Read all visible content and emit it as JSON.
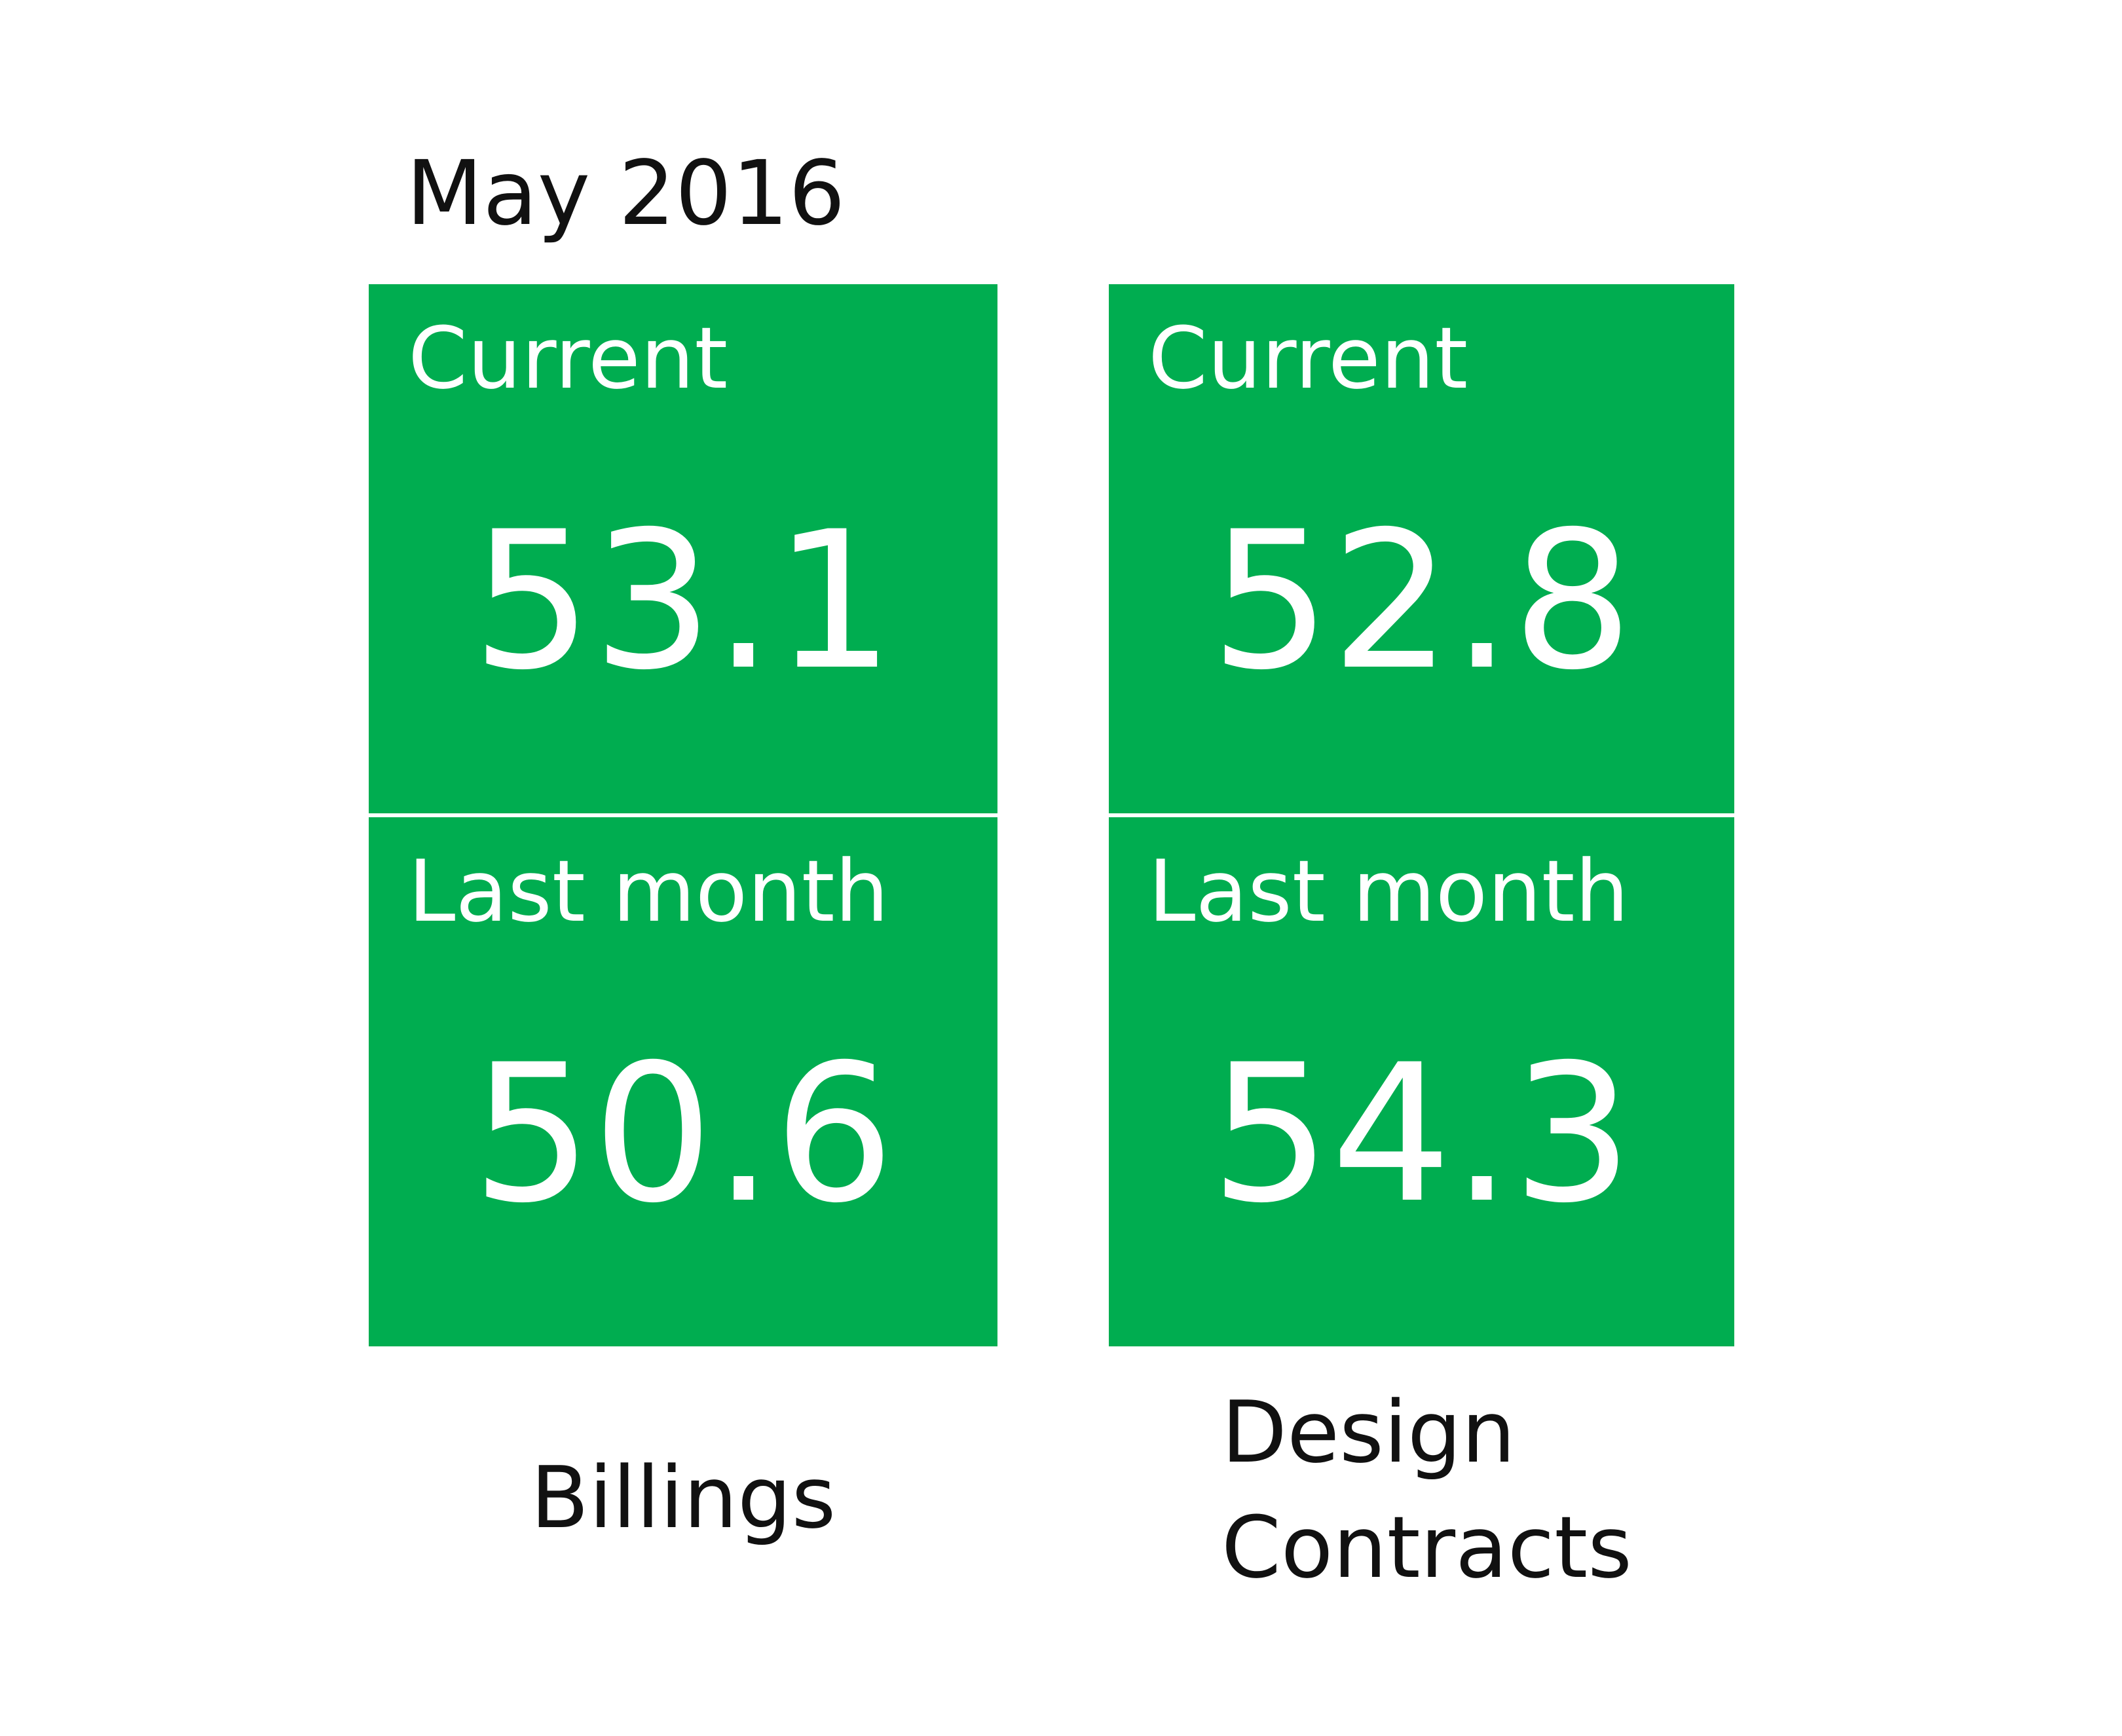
{
  "header": {
    "period": "May 2016"
  },
  "columns": [
    {
      "name": "Billings",
      "current": {
        "label": "Current",
        "value": "53.1"
      },
      "last_month": {
        "label": "Last month",
        "value": "50.6"
      }
    },
    {
      "name": "Design Contracts",
      "current": {
        "label": "Current",
        "value": "52.8"
      },
      "last_month": {
        "label": "Last month",
        "value": "54.3"
      }
    }
  ],
  "colors": {
    "tile_green": "#00ad50",
    "text_white": "#ffffff",
    "text_dark": "#111111"
  }
}
